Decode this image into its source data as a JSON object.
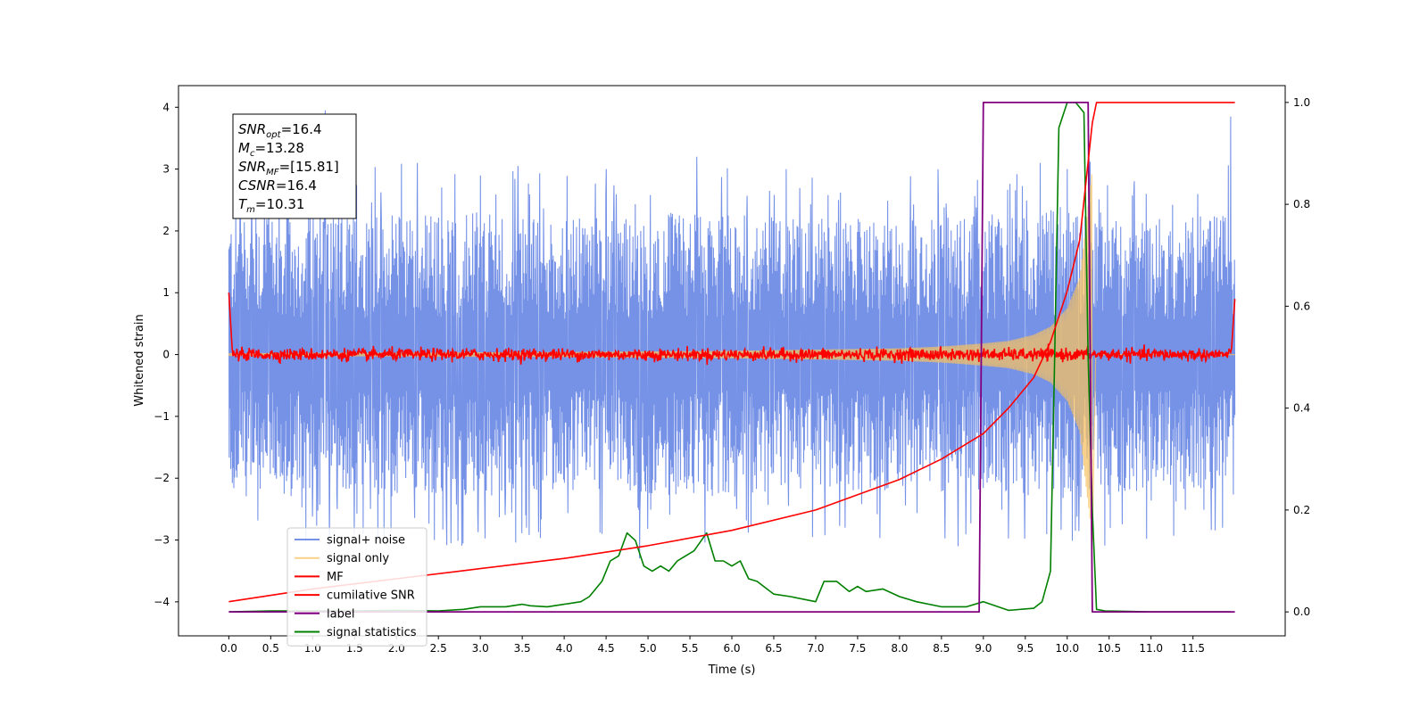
{
  "chart_data": {
    "type": "line",
    "title": "",
    "xlabel": "Time (s)",
    "ylabel": "Whitened strain",
    "y2label": "",
    "xlim": [
      -0.6,
      12.6
    ],
    "ylim": [
      -4.55,
      4.35
    ],
    "y2lim": [
      -0.047,
      1.033
    ],
    "xticks": [
      0,
      0.5,
      1,
      1.5,
      2,
      2.5,
      3,
      3.5,
      4,
      4.5,
      5,
      5.5,
      6,
      6.5,
      7,
      7.5,
      8,
      8.5,
      9,
      9.5,
      10,
      10.5,
      11,
      11.5
    ],
    "xtick_labels": [
      "0.0",
      "0.5",
      "1.0",
      "1.5",
      "2.0",
      "2.5",
      "3.0",
      "3.5",
      "4.0",
      "4.5",
      "5.0",
      "5.5",
      "6.0",
      "6.5",
      "7.0",
      "7.5",
      "8.0",
      "8.5",
      "9.0",
      "9.5",
      "10.0",
      "10.5",
      "11.0",
      "11.5"
    ],
    "yticks": [
      -4,
      -3,
      -2,
      -1,
      0,
      1,
      2,
      3,
      4
    ],
    "ytick_labels": [
      "−4",
      "−3",
      "−2",
      "−1",
      "0",
      "1",
      "2",
      "3",
      "4"
    ],
    "y2ticks": [
      0,
      0.2,
      0.4,
      0.6,
      0.8,
      1.0
    ],
    "y2tick_labels": [
      "0.0",
      "0.2",
      "0.4",
      "0.6",
      "0.8",
      "1.0"
    ],
    "grid": false,
    "legend_position": "lower-left",
    "annotation": {
      "lines": [
        {
          "base": "SNR",
          "sub": "opt",
          "value": "=16.4"
        },
        {
          "base": "M",
          "sub": "c",
          "value": "=13.28"
        },
        {
          "base": "SNR",
          "sub": "MF",
          "value": "=[15.81]"
        },
        {
          "base": "CSNR",
          "sub": "",
          "value": "=16.4"
        },
        {
          "base": "T",
          "sub": "m",
          "value": "=10.31"
        }
      ]
    },
    "series": [
      {
        "name": "signal+ noise",
        "axis": "left",
        "color": "#6f8ce6",
        "kind": "noise_band",
        "x_range": [
          0,
          12
        ],
        "envelope_x": [
          0,
          1,
          2,
          3,
          4,
          5,
          6,
          7,
          8,
          9,
          10,
          11,
          12
        ],
        "envelope_upper": [
          2.3,
          2.3,
          2.3,
          2.3,
          2.2,
          2.3,
          2.3,
          2.2,
          2.2,
          2.2,
          2.4,
          2.2,
          2.3
        ],
        "envelope_lower": [
          -2.3,
          -2.3,
          -2.3,
          -2.3,
          -2.2,
          -2.3,
          -2.3,
          -2.2,
          -2.2,
          -2.3,
          -2.4,
          -2.2,
          -2.3
        ],
        "peaks": [
          {
            "x": 1.15,
            "y": 3.95
          },
          {
            "x": 2.25,
            "y": 3.1
          },
          {
            "x": 3.45,
            "y": 3.05
          },
          {
            "x": 5.58,
            "y": 3.2
          },
          {
            "x": 8.7,
            "y": 3.4
          },
          {
            "x": 10.0,
            "y": 3.0
          },
          {
            "x": 11.95,
            "y": 3.85
          },
          {
            "x": 4.5,
            "y": 3.0
          },
          {
            "x": 6.65,
            "y": 3.0
          },
          {
            "x": 1.6,
            "y": -2.9
          },
          {
            "x": 4.45,
            "y": -2.9
          },
          {
            "x": 4.9,
            "y": -3.3
          },
          {
            "x": 8.7,
            "y": -3.1
          },
          {
            "x": 10.1,
            "y": -2.85
          },
          {
            "x": 11.85,
            "y": -2.8
          },
          {
            "x": 2.45,
            "y": -3.0
          },
          {
            "x": 3.55,
            "y": -2.8
          },
          {
            "x": 7.35,
            "y": -2.8
          }
        ]
      },
      {
        "name": "signal only",
        "axis": "left",
        "color": "#f5c062",
        "kind": "chirp",
        "x": [
          0,
          2,
          4,
          6,
          7,
          8,
          8.5,
          9,
          9.3,
          9.6,
          9.8,
          10.0,
          10.15,
          10.3
        ],
        "amplitude": [
          0.02,
          0.03,
          0.04,
          0.06,
          0.08,
          0.1,
          0.13,
          0.18,
          0.22,
          0.32,
          0.45,
          0.75,
          1.25,
          3.0
        ]
      },
      {
        "name": "MF",
        "axis": "left",
        "color": "#ff0000",
        "kind": "mf_noise",
        "x_range": [
          0,
          12
        ],
        "amplitude": 0.07,
        "edge_start": [
          [
            0,
            1.0
          ],
          [
            0.04,
            0.1
          ]
        ],
        "edge_end": [
          [
            11.96,
            0.1
          ],
          [
            12.0,
            0.9
          ]
        ]
      },
      {
        "name": "cumilative SNR",
        "axis": "right",
        "color": "#ff0000",
        "x": [
          0,
          1,
          2,
          3,
          4,
          5,
          6,
          7,
          7.5,
          8,
          8.5,
          9,
          9.3,
          9.6,
          9.8,
          10.0,
          10.15,
          10.3,
          10.35,
          12.0
        ],
        "values": [
          0.02,
          0.045,
          0.065,
          0.085,
          0.105,
          0.13,
          0.16,
          0.2,
          0.23,
          0.26,
          0.3,
          0.35,
          0.4,
          0.46,
          0.53,
          0.63,
          0.73,
          0.96,
          1.0,
          1.0
        ]
      },
      {
        "name": "label",
        "axis": "right",
        "color": "#800080",
        "x": [
          0,
          8.95,
          9.0,
          10.25,
          10.3,
          12.0
        ],
        "values": [
          0,
          0,
          1,
          1,
          0,
          0
        ]
      },
      {
        "name": "signal statistics",
        "axis": "right",
        "color": "#008000",
        "x": [
          0,
          0.5,
          1,
          1.5,
          2,
          2.5,
          2.8,
          3.0,
          3.3,
          3.5,
          3.6,
          3.8,
          4.0,
          4.2,
          4.3,
          4.45,
          4.55,
          4.65,
          4.75,
          4.85,
          4.95,
          5.05,
          5.15,
          5.25,
          5.35,
          5.45,
          5.55,
          5.7,
          5.8,
          5.9,
          6.0,
          6.1,
          6.2,
          6.3,
          6.5,
          6.7,
          7.0,
          7.1,
          7.25,
          7.4,
          7.5,
          7.6,
          7.8,
          8.0,
          8.2,
          8.5,
          8.8,
          9.0,
          9.3,
          9.6,
          9.7,
          9.8,
          9.85,
          9.9,
          10.0,
          10.1,
          10.2,
          10.25,
          10.3,
          10.35,
          10.45,
          11.0,
          11.5,
          11.95
        ],
        "values": [
          0.0,
          0.002,
          0.002,
          0.002,
          0.003,
          0.002,
          0.005,
          0.01,
          0.01,
          0.015,
          0.012,
          0.01,
          0.015,
          0.02,
          0.03,
          0.06,
          0.1,
          0.11,
          0.155,
          0.14,
          0.09,
          0.08,
          0.09,
          0.08,
          0.1,
          0.11,
          0.12,
          0.155,
          0.1,
          0.1,
          0.09,
          0.1,
          0.065,
          0.06,
          0.035,
          0.03,
          0.02,
          0.06,
          0.06,
          0.04,
          0.05,
          0.04,
          0.045,
          0.03,
          0.02,
          0.01,
          0.01,
          0.02,
          0.003,
          0.007,
          0.02,
          0.08,
          0.5,
          0.95,
          1.0,
          1.0,
          0.98,
          0.5,
          0.2,
          0.005,
          0.002,
          0.0,
          0.0,
          0.0
        ]
      }
    ]
  }
}
